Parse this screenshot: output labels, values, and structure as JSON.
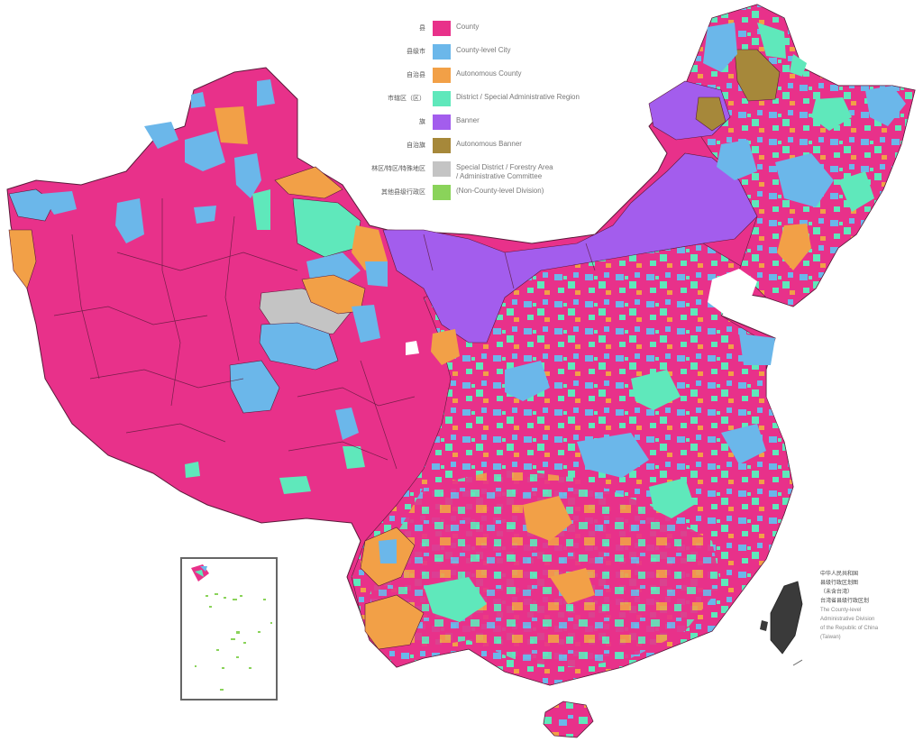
{
  "legend": {
    "items": [
      {
        "zh": "县",
        "label": "County",
        "color": "#e8318a"
      },
      {
        "zh": "县级市",
        "label": "County-level City",
        "color": "#6bb7ea"
      },
      {
        "zh": "自治县",
        "label": "Autonomous County",
        "color": "#f2a047"
      },
      {
        "zh": "市辖区（区）",
        "label": "District / Special Administrative Region",
        "color": "#5fe8bb"
      },
      {
        "zh": "旗",
        "label": "Banner",
        "color": "#a35ded"
      },
      {
        "zh": "自治旗",
        "label": "Autonomous Banner",
        "color": "#a6883a"
      },
      {
        "zh": "林区/特区/特殊地区",
        "label": "Special District / Forestry Area",
        "label2": "/ Administrative Committee",
        "color": "#c4c4c4"
      },
      {
        "zh": "其他县级行政区",
        "label": "(Non-County-level Division)",
        "color": "#8ad35a"
      }
    ]
  },
  "note": {
    "zh_lines": [
      "中华人民共和国",
      "县级行政区划图",
      "（未含台湾）",
      "台湾省县级行政区划"
    ],
    "en_lines": [
      "The County-level",
      "Administrative Division",
      "of the Republic of China",
      "(Taiwan)"
    ]
  },
  "colors": {
    "county": "#e8318a",
    "city": "#6bb7ea",
    "autonomous_county": "#f2a047",
    "district": "#5fe8bb",
    "banner": "#a35ded",
    "autonomous_banner": "#a6883a",
    "special": "#c4c4c4",
    "other": "#8ad35a",
    "taiwan": "#3a3a3a",
    "border": "#5a1a3a"
  }
}
